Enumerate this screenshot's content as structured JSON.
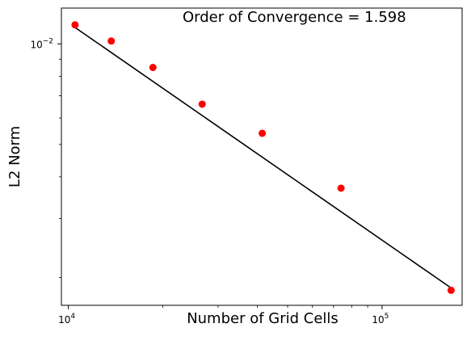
{
  "chart_data": {
    "type": "scatter",
    "annotation": "Order of Convergence = 1.598",
    "xlabel": "Number of Grid Cells",
    "ylabel": "L2 Norm",
    "xscale": "log",
    "yscale": "log",
    "xlim": [
      9500,
      180000
    ],
    "ylim": [
      0.00165,
      0.0128
    ],
    "grid": false,
    "series": [
      {
        "kind": "points",
        "color": "#ff0000",
        "x": [
          10500,
          13700,
          18600,
          26700,
          41500,
          74000,
          166000
        ],
        "y": [
          0.0114,
          0.0102,
          0.0085,
          0.0066,
          0.0054,
          0.0037,
          0.00183
        ]
      },
      {
        "kind": "fit-line",
        "color": "#000000",
        "x": [
          10500,
          166000
        ],
        "y": [
          0.0112,
          0.00186
        ]
      }
    ],
    "x_ticks": [
      {
        "value": 10000,
        "base": "10",
        "exp": "4"
      },
      {
        "value": 100000,
        "base": "10",
        "exp": "5"
      }
    ],
    "y_ticks": [
      {
        "value": 0.01,
        "base": "10",
        "exp": "−2"
      }
    ]
  }
}
